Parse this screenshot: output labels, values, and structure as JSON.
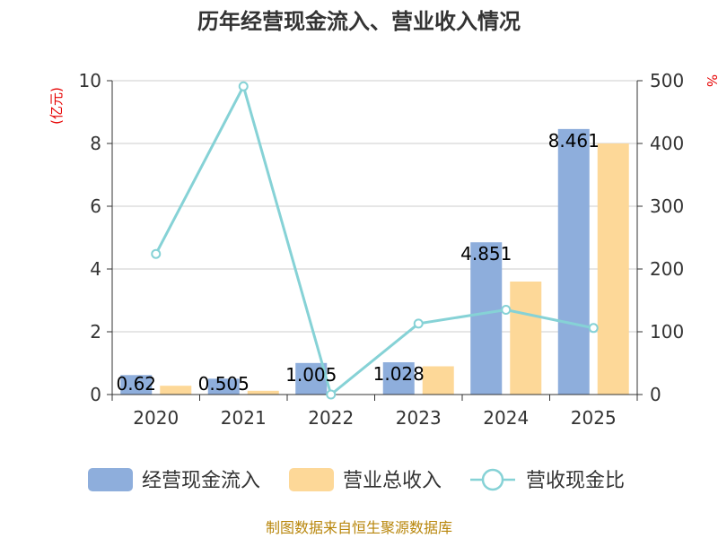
{
  "chart_data": {
    "type": "bar",
    "title": "历年经营现金流入、营业收入情况",
    "categories": [
      "2020",
      "2021",
      "2022",
      "2023",
      "2024",
      "2025"
    ],
    "y_left": {
      "unit_label": "(亿元)",
      "range": [
        0,
        10
      ],
      "ticks": [
        "0",
        "2",
        "4",
        "6",
        "8",
        "10"
      ]
    },
    "y_right": {
      "unit_label": "%",
      "range": [
        0,
        500
      ],
      "ticks": [
        "0",
        "100",
        "200",
        "300",
        "400",
        "500"
      ]
    },
    "series": [
      {
        "name": "经营现金流入",
        "type": "bar",
        "axis": "left",
        "color": "#8eaedc",
        "values": [
          0.62,
          0.505,
          1.005,
          1.028,
          4.851,
          8.461
        ],
        "labels": [
          "0.62",
          "0.505",
          "1.005",
          "1.028",
          "4.851",
          "8.461"
        ]
      },
      {
        "name": "营业总收入",
        "type": "bar",
        "axis": "left",
        "color": "#fdd898",
        "values": [
          0.28,
          0.12,
          0.0,
          0.9,
          3.6,
          8.0
        ]
      },
      {
        "name": "营收现金比",
        "type": "line",
        "axis": "right",
        "color": "#86d2d6",
        "values": [
          224,
          491,
          0,
          113,
          135,
          106
        ]
      }
    ],
    "grid": true,
    "legend": "bottom"
  },
  "source": "制图数据来自恒生聚源数据库"
}
